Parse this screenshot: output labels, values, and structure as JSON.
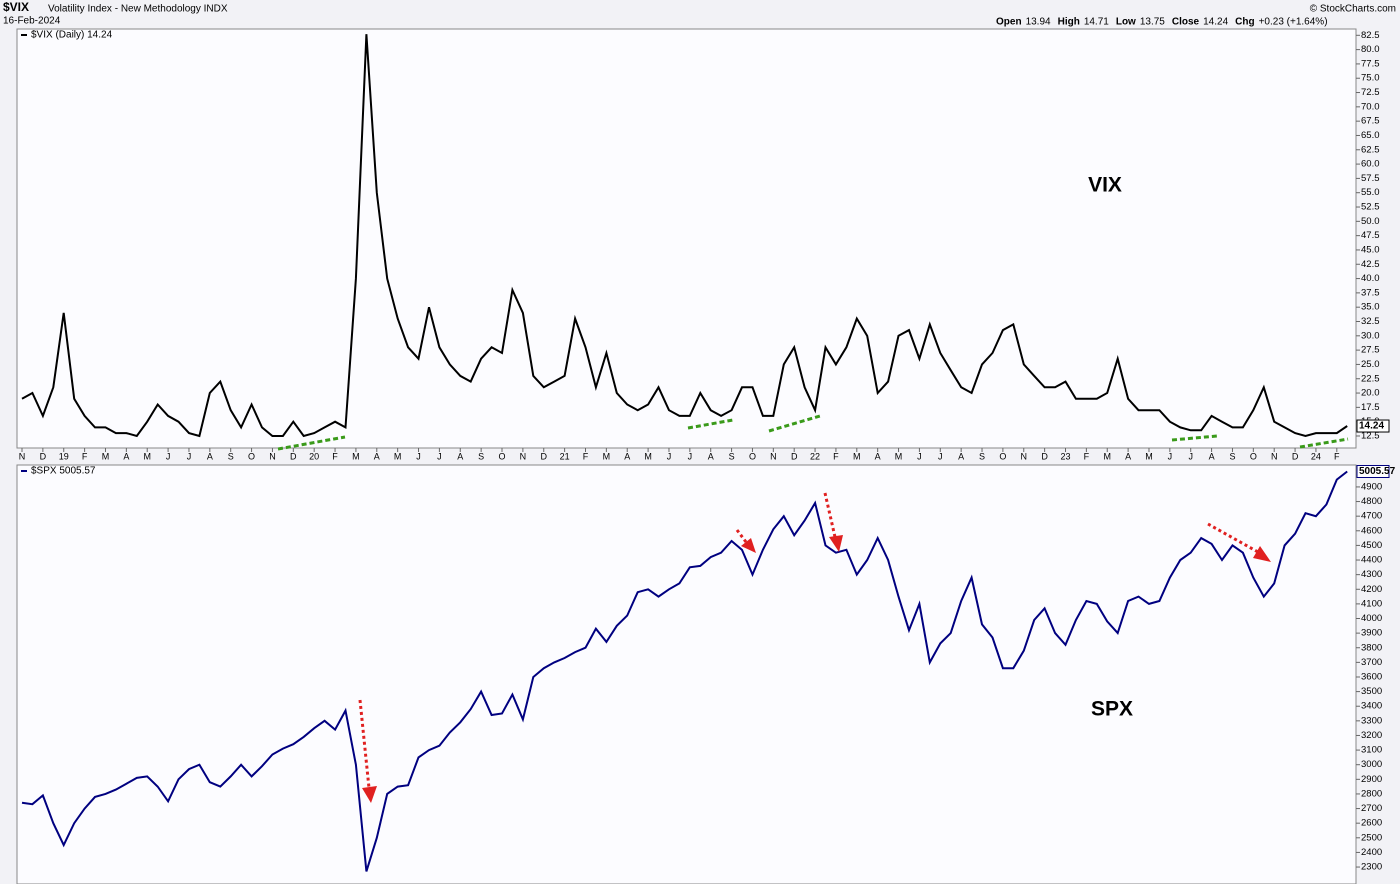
{
  "header": {
    "symbol": "$VIX",
    "description": "Volatility Index - New Methodology INDX",
    "date": "16-Feb-2024",
    "credit": "© StockCharts.com",
    "quote": [
      [
        "Open",
        "13.94"
      ],
      [
        "High",
        "14.71"
      ],
      [
        "Low",
        "13.75"
      ],
      [
        "Close",
        "14.24"
      ],
      [
        "Chg",
        "+0.23 (+1.64%)"
      ]
    ]
  },
  "chart_data": {
    "type": "line",
    "categories": [
      "N",
      null,
      "D",
      null,
      "19",
      null,
      "F",
      null,
      "M",
      null,
      "A",
      null,
      "M",
      null,
      "J",
      null,
      "J",
      null,
      "A",
      null,
      "S",
      null,
      "O",
      null,
      "N",
      null,
      "D",
      null,
      "20",
      null,
      "F",
      null,
      "M",
      null,
      "A",
      null,
      "M",
      null,
      "J",
      null,
      "J",
      null,
      "A",
      null,
      "S",
      null,
      "O",
      null,
      "N",
      null,
      "D",
      null,
      "21",
      null,
      "F",
      null,
      "M",
      null,
      "A",
      null,
      "M",
      null,
      "J",
      null,
      "J",
      null,
      "A",
      null,
      "S",
      null,
      "O",
      null,
      "N",
      null,
      "D",
      null,
      "22",
      null,
      "F",
      null,
      "M",
      null,
      "A",
      null,
      "M",
      null,
      "J",
      null,
      "J",
      null,
      "A",
      null,
      "S",
      null,
      "O",
      null,
      "N",
      null,
      "D",
      null,
      "23",
      null,
      "F",
      null,
      "M",
      null,
      "A",
      null,
      "M",
      null,
      "J",
      null,
      "J",
      null,
      "A",
      null,
      "S",
      null,
      "O",
      null,
      "N",
      null,
      "D",
      null,
      "24",
      null,
      "F",
      null
    ],
    "panels": [
      {
        "annotation": "VIX",
        "ylim": [
          10.4,
          83.6
        ],
        "yticks": [
          12.5,
          {
            "value": 15,
            "label": "15.0"
          },
          17.5,
          {
            "value": 20,
            "label": "20.0"
          },
          22.5,
          {
            "value": 25,
            "label": "25.0"
          },
          27.5,
          {
            "value": 30,
            "label": "30.0"
          },
          32.5,
          {
            "value": 35,
            "label": "35.0"
          },
          37.5,
          {
            "value": 40,
            "label": "40.0"
          },
          42.5,
          {
            "value": 45,
            "label": "45.0"
          },
          47.5,
          {
            "value": 50,
            "label": "50.0"
          },
          52.5,
          {
            "value": 55,
            "label": "55.0"
          },
          57.5,
          {
            "value": 60,
            "label": "60.0"
          },
          62.5,
          {
            "value": 65,
            "label": "65.0"
          },
          67.5,
          {
            "value": 70,
            "label": "70.0"
          },
          72.5,
          {
            "value": 75,
            "label": "75.0"
          },
          77.5,
          {
            "value": 80,
            "label": "80.0"
          },
          82.5
        ],
        "series": [
          {
            "name": "$VIX (Daily) 14.24",
            "color": "#000000",
            "values": [
              19,
              20,
              16,
              21,
              34,
              19,
              16,
              14,
              14,
              13,
              13,
              12.5,
              15,
              18,
              16,
              15,
              13,
              12.5,
              20,
              22,
              17,
              14,
              18,
              14,
              12.5,
              12.5,
              15,
              12.5,
              13,
              14,
              15,
              14,
              40,
              82.7,
              55,
              40,
              33,
              28,
              26,
              35,
              28,
              25,
              23,
              22,
              26,
              28,
              27,
              38,
              34,
              23,
              21,
              22,
              23,
              33,
              28,
              21,
              27,
              20,
              18,
              17,
              18,
              21,
              17,
              16,
              16,
              20,
              17,
              16,
              17,
              21,
              21,
              16,
              16,
              25,
              28,
              21,
              17,
              28,
              25,
              28,
              33,
              30,
              20,
              22,
              30,
              31,
              26,
              32,
              27,
              24,
              21,
              20,
              25,
              27,
              31,
              32,
              25,
              23,
              21,
              21,
              22,
              19,
              19,
              19,
              20,
              26,
              19,
              17,
              17,
              17,
              15,
              14,
              13.5,
              13.5,
              16,
              15,
              14,
              14,
              17,
              21,
              15,
              14,
              13,
              12.5,
              13,
              13,
              13,
              14.24
            ]
          }
        ]
      },
      {
        "annotation": "SPX",
        "ylim": [
          2184,
          5050
        ],
        "yticks": [
          2300,
          2400,
          2500,
          2600,
          2700,
          2800,
          2900,
          3000,
          3100,
          3200,
          3300,
          3400,
          3500,
          3600,
          3700,
          3800,
          3900,
          4000,
          4100,
          4200,
          4300,
          4400,
          4500,
          4600,
          4700,
          4800,
          4900
        ],
        "series": [
          {
            "name": "$SPX 5005.57",
            "color": "#000080",
            "values": [
              2740,
              2730,
              2790,
              2600,
              2450,
              2600,
              2700,
              2780,
              2800,
              2830,
              2870,
              2910,
              2920,
              2850,
              2750,
              2900,
              2970,
              3000,
              2880,
              2850,
              2920,
              3000,
              2920,
              2990,
              3070,
              3110,
              3140,
              3190,
              3250,
              3300,
              3240,
              3370,
              3000,
              2270,
              2500,
              2800,
              2850,
              2860,
              3050,
              3100,
              3130,
              3220,
              3290,
              3380,
              3500,
              3340,
              3350,
              3480,
              3310,
              3600,
              3660,
              3700,
              3730,
              3770,
              3800,
              3930,
              3840,
              3950,
              4020,
              4180,
              4200,
              4150,
              4200,
              4240,
              4350,
              4360,
              4420,
              4450,
              4530,
              4470,
              4300,
              4470,
              4610,
              4700,
              4570,
              4670,
              4790,
              4500,
              4450,
              4470,
              4300,
              4400,
              4550,
              4400,
              4150,
              3920,
              4100,
              3700,
              3830,
              3900,
              4120,
              4280,
              3960,
              3870,
              3660,
              3660,
              3780,
              3990,
              4070,
              3900,
              3820,
              3990,
              4120,
              4100,
              3980,
              3900,
              4120,
              4150,
              4100,
              4120,
              4280,
              4400,
              4450,
              4550,
              4510,
              4400,
              4500,
              4450,
              4280,
              4150,
              4240,
              4500,
              4580,
              4720,
              4700,
              4780,
              4950,
              5005.57
            ]
          }
        ]
      }
    ]
  }
}
